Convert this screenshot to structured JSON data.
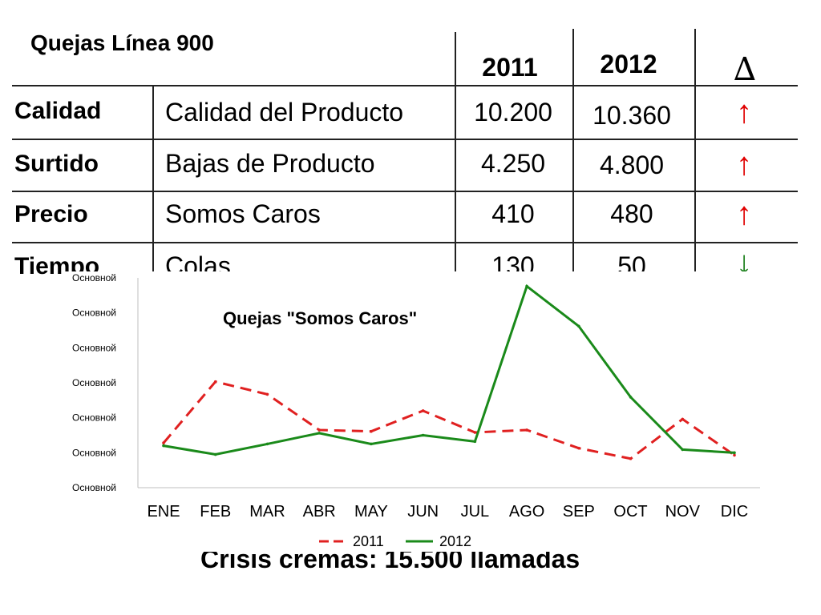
{
  "table": {
    "title": "Quejas Línea 900",
    "year_2011": "2011",
    "year_2012": "2012",
    "delta_symbol": "∆",
    "rows": [
      {
        "category": "Calidad",
        "description": "Calidad del Producto",
        "v2011": "10.200",
        "v2012": "10.360",
        "trend": "up"
      },
      {
        "category": "Surtido",
        "description": "Bajas de Producto",
        "v2011": "4.250",
        "v2012": "4.800",
        "trend": "up"
      },
      {
        "category": "Precio",
        "description": "Somos Caros",
        "v2011": "410",
        "v2012": "480",
        "trend": "up"
      },
      {
        "category": "Tiempo",
        "description": "Colas",
        "v2011": "130",
        "v2012": "50",
        "trend": "down"
      }
    ],
    "up_symbol": "↑",
    "down_symbol": "↓",
    "colors": {
      "up": "#e00000",
      "down": "#1a7f1a"
    }
  },
  "footer": {
    "text": "Crisis cremas: 15.500 llamadas"
  },
  "chart_data": {
    "type": "line",
    "title": "Quejas \"Somos Caros\"",
    "categories": [
      "ENE",
      "FEB",
      "MAR",
      "ABR",
      "MAY",
      "JUN",
      "JUL",
      "AGO",
      "SEP",
      "OCT",
      "NOV",
      "DIC"
    ],
    "y_tick_labels": [
      "Основной",
      "Основной",
      "Основной",
      "Основной",
      "Основной",
      "Основной",
      "Основной"
    ],
    "ylim": [
      0,
      6
    ],
    "series": [
      {
        "name": "2011",
        "color": "#e02020",
        "dash": true,
        "values": [
          1.28,
          3.03,
          2.67,
          1.65,
          1.61,
          2.2,
          1.58,
          1.65,
          1.13,
          0.83,
          1.96,
          0.93
        ]
      },
      {
        "name": "2012",
        "color": "#1a8a1a",
        "dash": false,
        "values": [
          1.2,
          0.95,
          1.25,
          1.56,
          1.25,
          1.5,
          1.32,
          5.76,
          4.62,
          2.59,
          1.09,
          1.0
        ]
      }
    ],
    "legend_position": "bottom",
    "grid": false
  }
}
